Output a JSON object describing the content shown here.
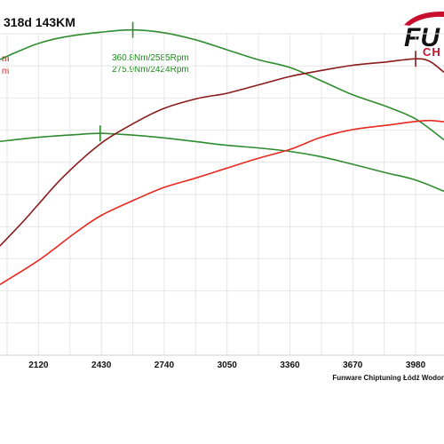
{
  "chart_data": {
    "type": "line",
    "title": "318d 143KM",
    "x_ticks": [
      2120,
      2430,
      2740,
      3050,
      3360,
      3670,
      3980
    ],
    "xlim": [
      1930,
      4120
    ],
    "ylim": [
      0,
      100
    ],
    "legend_fragments": [
      {
        "text": "m",
        "color": "#c00000"
      },
      {
        "text": "m",
        "color": "#e82020"
      }
    ],
    "annotations": [
      {
        "text": "360.8Nm/2585Rpm",
        "color": "#1a8c1a",
        "x": 2585,
        "series": "torque_tuned"
      },
      {
        "text": "275.9Nm/2424Rpm",
        "color": "#1a8c1a",
        "x": 2424,
        "series": "torque_stock"
      }
    ],
    "series": [
      {
        "key": "torque_tuned",
        "color": "#2e8b2e",
        "points": [
          [
            1930,
            92
          ],
          [
            2020,
            94.5
          ],
          [
            2120,
            97
          ],
          [
            2250,
            99
          ],
          [
            2430,
            100.5
          ],
          [
            2585,
            101.2
          ],
          [
            2740,
            100.3
          ],
          [
            2900,
            98
          ],
          [
            3050,
            95
          ],
          [
            3200,
            92
          ],
          [
            3360,
            89.5
          ],
          [
            3510,
            85.5
          ],
          [
            3670,
            81
          ],
          [
            3830,
            77.5
          ],
          [
            3980,
            73.5
          ],
          [
            4120,
            67
          ]
        ]
      },
      {
        "key": "torque_stock",
        "color": "#2e8b2e",
        "points": [
          [
            1930,
            66.5
          ],
          [
            2120,
            67.8
          ],
          [
            2300,
            68.6
          ],
          [
            2424,
            69
          ],
          [
            2600,
            68.4
          ],
          [
            2740,
            67.6
          ],
          [
            2900,
            66.4
          ],
          [
            3050,
            65.3
          ],
          [
            3200,
            64.5
          ],
          [
            3360,
            63.4
          ],
          [
            3510,
            61.8
          ],
          [
            3670,
            59.4
          ],
          [
            3830,
            56.8
          ],
          [
            3980,
            54.5
          ],
          [
            4120,
            51
          ]
        ]
      },
      {
        "key": "power_tuned",
        "color": "#8b1a1a",
        "points": [
          [
            1930,
            34
          ],
          [
            2050,
            42
          ],
          [
            2120,
            47
          ],
          [
            2250,
            56
          ],
          [
            2430,
            66
          ],
          [
            2600,
            72.5
          ],
          [
            2740,
            76.8
          ],
          [
            2900,
            79.8
          ],
          [
            3050,
            81.5
          ],
          [
            3200,
            84
          ],
          [
            3360,
            86.7
          ],
          [
            3510,
            88.5
          ],
          [
            3670,
            90.2
          ],
          [
            3830,
            91.2
          ],
          [
            3980,
            92.2
          ],
          [
            4050,
            91.4
          ],
          [
            4120,
            88
          ]
        ]
      },
      {
        "key": "power_stock",
        "color": "#e8281e",
        "points": [
          [
            1930,
            22
          ],
          [
            2120,
            29.5
          ],
          [
            2300,
            38
          ],
          [
            2430,
            43.5
          ],
          [
            2600,
            48.5
          ],
          [
            2740,
            52.2
          ],
          [
            2900,
            55.2
          ],
          [
            3050,
            58.2
          ],
          [
            3200,
            61.2
          ],
          [
            3360,
            64
          ],
          [
            3510,
            67.7
          ],
          [
            3670,
            70.2
          ],
          [
            3830,
            71.5
          ],
          [
            3980,
            72.7
          ],
          [
            4050,
            73
          ],
          [
            4120,
            72.6
          ]
        ]
      }
    ],
    "peak_markers": [
      {
        "series": "torque_tuned",
        "x": 2585,
        "color": "#2e8b2e"
      },
      {
        "series": "torque_stock",
        "x": 2424,
        "color": "#2e8b2e"
      },
      {
        "series": "power_tuned",
        "x": 3980,
        "color": "#8b1a1a"
      }
    ],
    "credit": "Funware Chiptuning Łódź Wodor",
    "logo": {
      "big": "FU",
      "small": "CH"
    }
  }
}
